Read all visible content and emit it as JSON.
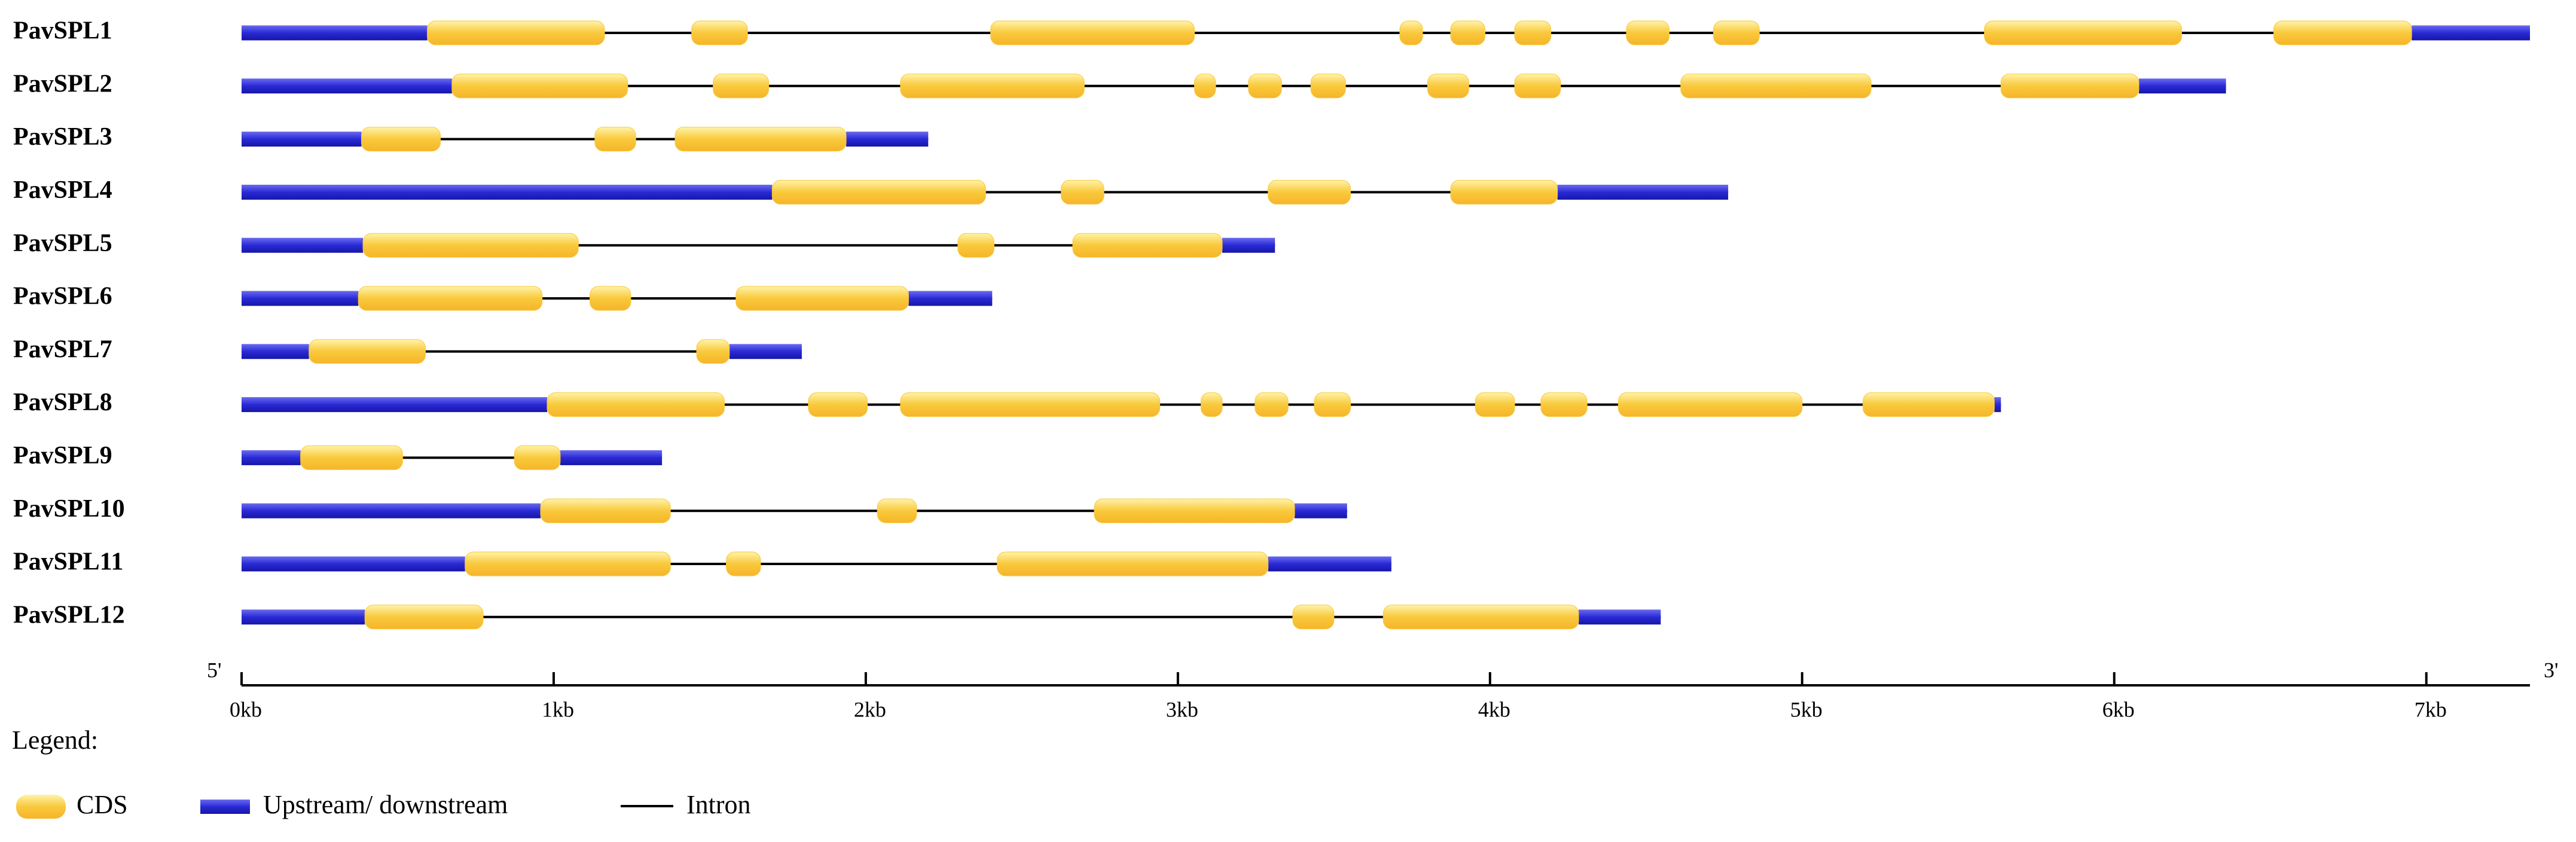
{
  "chart_data": {
    "type": "gene-structure",
    "cds_color": "#f9c93c",
    "utr_color": "#2a2ad6",
    "intron_color": "#000000",
    "xlim": [
      0,
      7332
    ],
    "xticks": [
      {
        "value": 0,
        "label": "0kb"
      },
      {
        "value": 1000,
        "label": "1kb"
      },
      {
        "value": 2000,
        "label": "2kb"
      },
      {
        "value": 3000,
        "label": "3kb"
      },
      {
        "value": 4000,
        "label": "4kb"
      },
      {
        "value": 5000,
        "label": "5kb"
      },
      {
        "value": 6000,
        "label": "6kb"
      },
      {
        "value": 7000,
        "label": "7kb"
      }
    ],
    "axis_start_label": "5'",
    "axis_end_label": "3'",
    "legend_title": "Legend:",
    "legend": {
      "cds": "CDS",
      "utr": "Upstream/ downstream",
      "intron": "Intron"
    },
    "genes": [
      {
        "name": "PavSPL1",
        "length": 7332,
        "cds": [
          [
            595,
            1163
          ],
          [
            1442,
            1621
          ],
          [
            2400,
            3053
          ],
          [
            3711,
            3784
          ],
          [
            3874,
            3984
          ],
          [
            4079,
            4195
          ],
          [
            4437,
            4574
          ],
          [
            4716,
            4863
          ],
          [
            5584,
            6216
          ],
          [
            6511,
            6953
          ]
        ]
      },
      {
        "name": "PavSPL2",
        "length": 6358,
        "cds": [
          [
            674,
            1237
          ],
          [
            1511,
            1689
          ],
          [
            2111,
            2700
          ],
          [
            3053,
            3121
          ],
          [
            3226,
            3332
          ],
          [
            3426,
            3537
          ],
          [
            3800,
            3932
          ],
          [
            4079,
            4226
          ],
          [
            4611,
            5221
          ],
          [
            5637,
            6079
          ]
        ]
      },
      {
        "name": "PavSPL3",
        "length": 2200,
        "cds": [
          [
            384,
            637
          ],
          [
            1132,
            1263
          ],
          [
            1389,
            1937
          ]
        ]
      },
      {
        "name": "PavSPL4",
        "length": 4763,
        "cds": [
          [
            1700,
            2384
          ],
          [
            2626,
            2763
          ],
          [
            3289,
            3553
          ],
          [
            3874,
            4216
          ]
        ]
      },
      {
        "name": "PavSPL5",
        "length": 3311,
        "cds": [
          [
            389,
            1079
          ],
          [
            2295,
            2411
          ],
          [
            2663,
            3142
          ]
        ]
      },
      {
        "name": "PavSPL6",
        "length": 2405,
        "cds": [
          [
            374,
            963
          ],
          [
            1116,
            1247
          ],
          [
            1584,
            2137
          ]
        ]
      },
      {
        "name": "PavSPL7",
        "length": 1795,
        "cds": [
          [
            216,
            589
          ],
          [
            1458,
            1563
          ]
        ]
      },
      {
        "name": "PavSPL8",
        "length": 5637,
        "cds": [
          [
            979,
            1547
          ],
          [
            1816,
            2005
          ],
          [
            2111,
            2942
          ],
          [
            3074,
            3142
          ],
          [
            3247,
            3353
          ],
          [
            3437,
            3553
          ],
          [
            3953,
            4079
          ],
          [
            4163,
            4311
          ],
          [
            4411,
            5000
          ],
          [
            5195,
            5616
          ]
        ]
      },
      {
        "name": "PavSPL9",
        "length": 1347,
        "cds": [
          [
            189,
            516
          ],
          [
            874,
            1021
          ]
        ]
      },
      {
        "name": "PavSPL10",
        "length": 3542,
        "cds": [
          [
            958,
            1374
          ],
          [
            2037,
            2163
          ],
          [
            2732,
            3374
          ]
        ]
      },
      {
        "name": "PavSPL11",
        "length": 3684,
        "cds": [
          [
            716,
            1374
          ],
          [
            1553,
            1663
          ],
          [
            2421,
            3289
          ]
        ]
      },
      {
        "name": "PavSPL12",
        "length": 4547,
        "cds": [
          [
            395,
            774
          ],
          [
            3368,
            3500
          ],
          [
            3658,
            4284
          ]
        ]
      }
    ]
  }
}
